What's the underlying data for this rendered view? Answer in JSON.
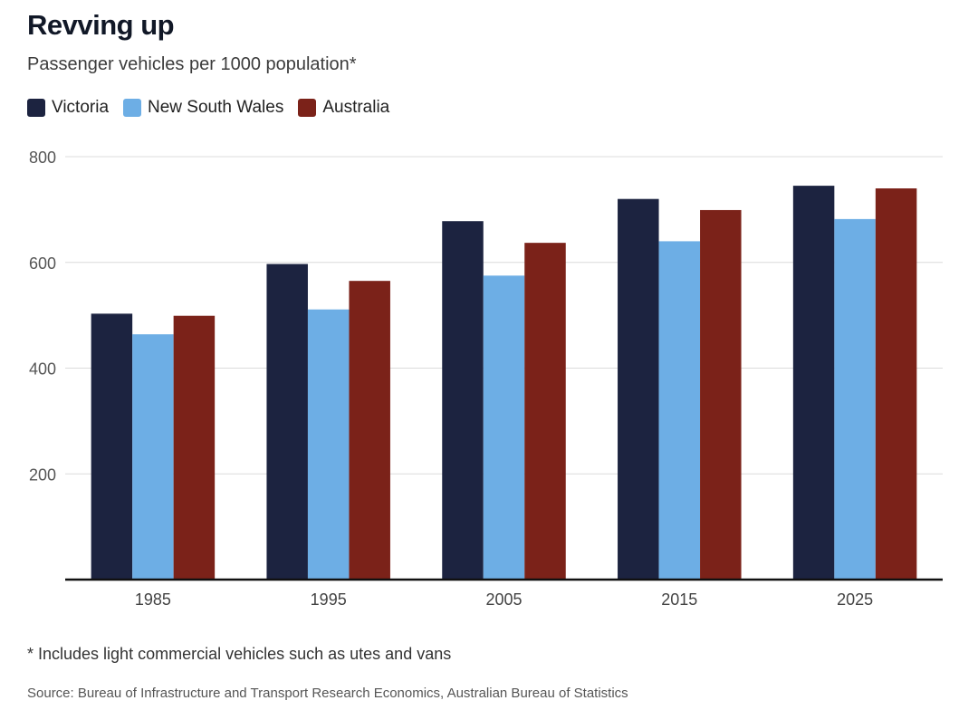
{
  "header": {
    "title": "Revving up",
    "subtitle": "Passenger vehicles per 1000 population*"
  },
  "legend": [
    {
      "label": "Victoria",
      "color": "#1c2340"
    },
    {
      "label": "New South Wales",
      "color": "#6daee5"
    },
    {
      "label": "Australia",
      "color": "#7b2219"
    }
  ],
  "footer": {
    "footnote": "* Includes light commercial vehicles such as utes and vans",
    "source": "Source: Bureau of Infrastructure and Transport Research Economics, Australian Bureau of Statistics"
  },
  "chart_data": {
    "type": "bar",
    "title": "Revving up",
    "subtitle": "Passenger vehicles per 1000 population*",
    "categories": [
      "1985",
      "1995",
      "2005",
      "2015",
      "2025"
    ],
    "series": [
      {
        "name": "Victoria",
        "color": "#1c2340",
        "values": [
          503,
          597,
          678,
          720,
          745
        ]
      },
      {
        "name": "New South Wales",
        "color": "#6daee5",
        "values": [
          464,
          511,
          575,
          640,
          682
        ]
      },
      {
        "name": "Australia",
        "color": "#7b2219",
        "values": [
          499,
          565,
          637,
          699,
          740
        ]
      }
    ],
    "ylim": [
      0,
      800
    ],
    "yticks": [
      200,
      400,
      600,
      800
    ],
    "xlabel": "",
    "ylabel": "",
    "grid": true,
    "legend_position": "top-left"
  }
}
